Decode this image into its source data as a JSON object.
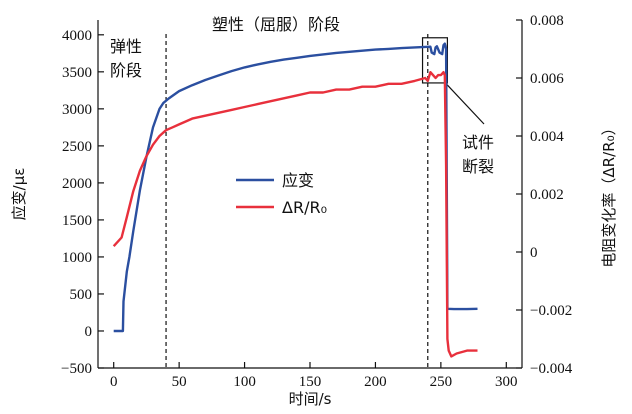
{
  "chart_data": {
    "type": "line",
    "xlabel": "时间/s",
    "ylabel_left": "应变/με",
    "ylabel_right": "电阻变化率（ΔR/R₀）",
    "xlim": [
      -12,
      312
    ],
    "ylim_left": [
      -500,
      4200
    ],
    "ylim_right": [
      -0.004,
      0.008
    ],
    "x_ticks": [
      0,
      50,
      100,
      150,
      200,
      250,
      300
    ],
    "y_ticks_left": [
      -500,
      0,
      500,
      1000,
      1500,
      2000,
      2500,
      3000,
      3500,
      4000
    ],
    "y_ticks_right": [
      "−0.004",
      "−0.002",
      "0",
      "0.002",
      "0.004",
      "0.006",
      "0.008"
    ],
    "y_ticks_right_values": [
      -0.004,
      -0.002,
      0,
      0.002,
      0.004,
      0.006,
      0.008
    ],
    "grid": false,
    "legend_position": "center",
    "annotations": {
      "elastic": [
        "弹性",
        "阶段"
      ],
      "plastic": "塑性（屈服）阶段",
      "fracture": [
        "试件",
        "断裂"
      ]
    },
    "vlines_x": [
      40,
      240
    ],
    "fracture_box_x": [
      236,
      255
    ],
    "fracture_box_y_left": [
      3350,
      3960
    ],
    "series": [
      {
        "name": "应变",
        "axis": "left",
        "color": "#2B4FA0",
        "points": [
          [
            0,
            0
          ],
          [
            7,
            0
          ],
          [
            7.5,
            400
          ],
          [
            10,
            800
          ],
          [
            12,
            1000
          ],
          [
            15,
            1350
          ],
          [
            20,
            1900
          ],
          [
            25,
            2350
          ],
          [
            30,
            2750
          ],
          [
            35,
            3000
          ],
          [
            38,
            3080
          ],
          [
            42,
            3140
          ],
          [
            50,
            3240
          ],
          [
            60,
            3320
          ],
          [
            70,
            3390
          ],
          [
            80,
            3450
          ],
          [
            90,
            3510
          ],
          [
            100,
            3560
          ],
          [
            110,
            3600
          ],
          [
            120,
            3635
          ],
          [
            130,
            3665
          ],
          [
            140,
            3690
          ],
          [
            150,
            3715
          ],
          [
            160,
            3735
          ],
          [
            170,
            3755
          ],
          [
            180,
            3770
          ],
          [
            190,
            3785
          ],
          [
            200,
            3800
          ],
          [
            210,
            3810
          ],
          [
            220,
            3820
          ],
          [
            230,
            3830
          ],
          [
            240,
            3838
          ],
          [
            242,
            3840
          ],
          [
            243,
            3760
          ],
          [
            245,
            3740
          ],
          [
            246,
            3830
          ],
          [
            247,
            3845
          ],
          [
            249,
            3760
          ],
          [
            251,
            3740
          ],
          [
            252,
            3860
          ],
          [
            253,
            3880
          ],
          [
            254,
            3810
          ],
          [
            255,
            300
          ],
          [
            260,
            295
          ],
          [
            270,
            295
          ],
          [
            278,
            300
          ]
        ]
      },
      {
        "name": "ΔR/R₀",
        "axis": "right",
        "color": "#E8303C",
        "points": [
          [
            0,
            0.0002
          ],
          [
            6,
            0.0005
          ],
          [
            10,
            0.0012
          ],
          [
            15,
            0.0021
          ],
          [
            20,
            0.0028
          ],
          [
            25,
            0.0033
          ],
          [
            30,
            0.0037
          ],
          [
            35,
            0.004
          ],
          [
            40,
            0.0042
          ],
          [
            45,
            0.0043
          ],
          [
            50,
            0.0044
          ],
          [
            55,
            0.0045
          ],
          [
            60,
            0.0046
          ],
          [
            70,
            0.0047
          ],
          [
            80,
            0.0048
          ],
          [
            90,
            0.0049
          ],
          [
            100,
            0.005
          ],
          [
            110,
            0.0051
          ],
          [
            120,
            0.0052
          ],
          [
            130,
            0.0053
          ],
          [
            140,
            0.0054
          ],
          [
            150,
            0.0055
          ],
          [
            160,
            0.0055
          ],
          [
            170,
            0.0056
          ],
          [
            180,
            0.0056
          ],
          [
            190,
            0.0057
          ],
          [
            200,
            0.0057
          ],
          [
            210,
            0.0058
          ],
          [
            220,
            0.0058
          ],
          [
            230,
            0.0059
          ],
          [
            238,
            0.006
          ],
          [
            240,
            0.0059
          ],
          [
            242,
            0.0062
          ],
          [
            244,
            0.0061
          ],
          [
            246,
            0.006
          ],
          [
            248,
            0.0061
          ],
          [
            250,
            0.0061
          ],
          [
            252,
            0.0062
          ],
          [
            253,
            0.0061
          ],
          [
            254,
            0.003
          ],
          [
            255,
            -0.003
          ],
          [
            256,
            -0.0034
          ],
          [
            258,
            -0.0036
          ],
          [
            262,
            -0.0035
          ],
          [
            270,
            -0.0034
          ],
          [
            278,
            -0.0034
          ]
        ]
      }
    ]
  }
}
